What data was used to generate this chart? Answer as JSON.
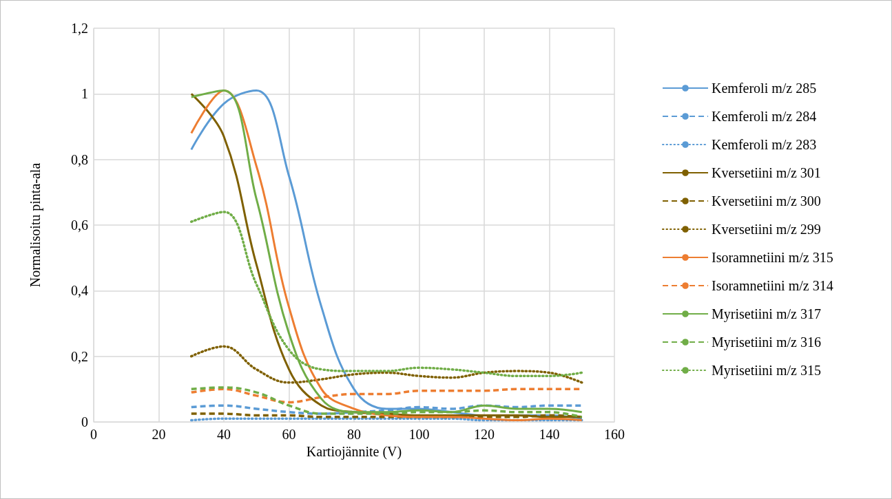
{
  "chart_data": {
    "type": "line",
    "xlabel": "Kartiojännite (V)",
    "ylabel": "Normalisoitu pinta-ala",
    "x": [
      30,
      40,
      50,
      60,
      70,
      80,
      90,
      100,
      110,
      120,
      130,
      140,
      150
    ],
    "xlim": [
      0,
      160
    ],
    "xticks": [
      0,
      20,
      40,
      60,
      80,
      100,
      120,
      140,
      160
    ],
    "ylim": [
      0,
      1.2
    ],
    "yticks": [
      0,
      {
        "value": 0.2,
        "label": "0,2"
      },
      {
        "value": 0.4,
        "label": "0,4"
      },
      {
        "value": 0.6,
        "label": "0,6"
      },
      {
        "value": 0.8,
        "label": "0,8"
      },
      1,
      {
        "value": 1.2,
        "label": "1,2"
      }
    ],
    "grid": true,
    "legend": "right",
    "marker": "none",
    "series": [
      {
        "name": "Kemferoli m/z 285",
        "color": "#5b9bd5",
        "line_style": "solid",
        "values": [
          0.83,
          0.97,
          1.01,
          0.75,
          0.35,
          0.1,
          0.04,
          0.04,
          0.03,
          0.02,
          0.02,
          0.02,
          0.01
        ]
      },
      {
        "name": "Kemferoli m/z 284",
        "color": "#5b9bd5",
        "line_style": "dashed",
        "values": [
          0.045,
          0.05,
          0.04,
          0.03,
          0.025,
          0.03,
          0.035,
          0.045,
          0.04,
          0.05,
          0.045,
          0.05,
          0.05
        ]
      },
      {
        "name": "Kemferoli m/z 283",
        "color": "#5b9bd5",
        "line_style": "dotted",
        "values": [
          0.005,
          0.01,
          0.01,
          0.01,
          0.01,
          0.01,
          0.01,
          0.01,
          0.01,
          0.005,
          0.005,
          0.005,
          0.005
        ]
      },
      {
        "name": "Kversetiini m/z 301",
        "color": "#7f6000",
        "line_style": "solid",
        "values": [
          1.0,
          0.87,
          0.48,
          0.16,
          0.05,
          0.03,
          0.025,
          0.02,
          0.02,
          0.02,
          0.02,
          0.015,
          0.015
        ]
      },
      {
        "name": "Kversetiini m/z 300",
        "color": "#7f6000",
        "line_style": "dashed",
        "values": [
          0.025,
          0.025,
          0.02,
          0.02,
          0.015,
          0.015,
          0.015,
          0.015,
          0.015,
          0.015,
          0.015,
          0.02,
          0.015
        ]
      },
      {
        "name": "Kversetiini m/z 299",
        "color": "#7f6000",
        "line_style": "dotted",
        "values": [
          0.2,
          0.23,
          0.16,
          0.12,
          0.13,
          0.145,
          0.15,
          0.14,
          0.135,
          0.15,
          0.155,
          0.15,
          0.12
        ]
      },
      {
        "name": "Isoramnetiini m/z 315",
        "color": "#ed7d31",
        "line_style": "solid",
        "values": [
          0.88,
          1.01,
          0.78,
          0.35,
          0.1,
          0.04,
          0.02,
          0.015,
          0.015,
          0.01,
          0.005,
          0.01,
          0.005
        ]
      },
      {
        "name": "Isoramnetiini m/z 314",
        "color": "#ed7d31",
        "line_style": "dashed",
        "values": [
          0.09,
          0.1,
          0.08,
          0.06,
          0.075,
          0.085,
          0.085,
          0.095,
          0.095,
          0.095,
          0.1,
          0.1,
          0.1
        ]
      },
      {
        "name": "Myrisetiini m/z 317",
        "color": "#70ad47",
        "line_style": "solid",
        "values": [
          0.99,
          1.01,
          0.68,
          0.27,
          0.07,
          0.03,
          0.03,
          0.035,
          0.03,
          0.05,
          0.04,
          0.04,
          0.03
        ]
      },
      {
        "name": "Myrisetiini m/z 316",
        "color": "#70ad47",
        "line_style": "dashed",
        "values": [
          0.1,
          0.105,
          0.09,
          0.05,
          0.025,
          0.025,
          0.025,
          0.03,
          0.03,
          0.035,
          0.03,
          0.03,
          0.015
        ]
      },
      {
        "name": "Myrisetiini m/z 315",
        "color": "#70ad47",
        "line_style": "dotted",
        "values": [
          0.61,
          0.64,
          0.42,
          0.22,
          0.16,
          0.155,
          0.155,
          0.165,
          0.16,
          0.15,
          0.14,
          0.14,
          0.15
        ]
      }
    ]
  }
}
